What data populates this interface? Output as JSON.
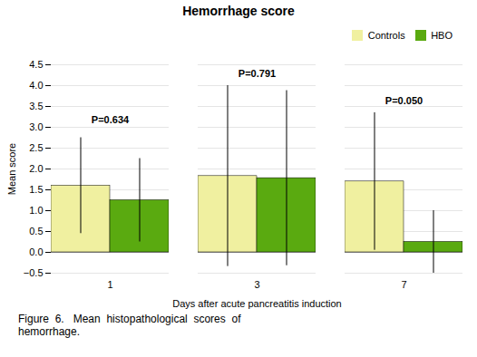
{
  "chart_data": {
    "type": "bar",
    "title": "Hemorrhage score",
    "xlabel": "Days after acute pancreatitis induction",
    "ylabel": "Mean score",
    "categories": [
      1,
      3,
      7
    ],
    "series": [
      {
        "name": "Controls",
        "color": "#f0f0a0",
        "values": [
          1.6,
          1.83,
          1.7
        ],
        "errors": [
          1.15,
          2.17,
          1.65
        ]
      },
      {
        "name": "HBO",
        "color": "#5aaa10",
        "values": [
          1.25,
          1.78,
          0.25
        ],
        "errors": [
          1.0,
          2.1,
          0.75
        ]
      }
    ],
    "annotations": [
      {
        "text": "P=0.634",
        "x": 1,
        "y": 3.1
      },
      {
        "text": "P=0.791",
        "x": 3,
        "y": 4.2
      },
      {
        "text": "P=0.050",
        "x": 7,
        "y": 3.55
      }
    ],
    "ylim": [
      -0.5,
      4.5
    ],
    "yticks": [
      -0.5,
      {
        "value": 0,
        "label": "0.0"
      },
      0.5,
      {
        "value": 1,
        "label": "1.0"
      },
      1.5,
      {
        "value": 2,
        "label": "2.0"
      },
      2.5,
      {
        "value": 3,
        "label": "3.0"
      },
      3.5,
      {
        "value": 4,
        "label": "4.0"
      },
      4.5
    ],
    "grid": true,
    "legend": "upper right",
    "caption": "Figure  6.   Mean  histopathological  scores  of\nhemorrhage."
  }
}
